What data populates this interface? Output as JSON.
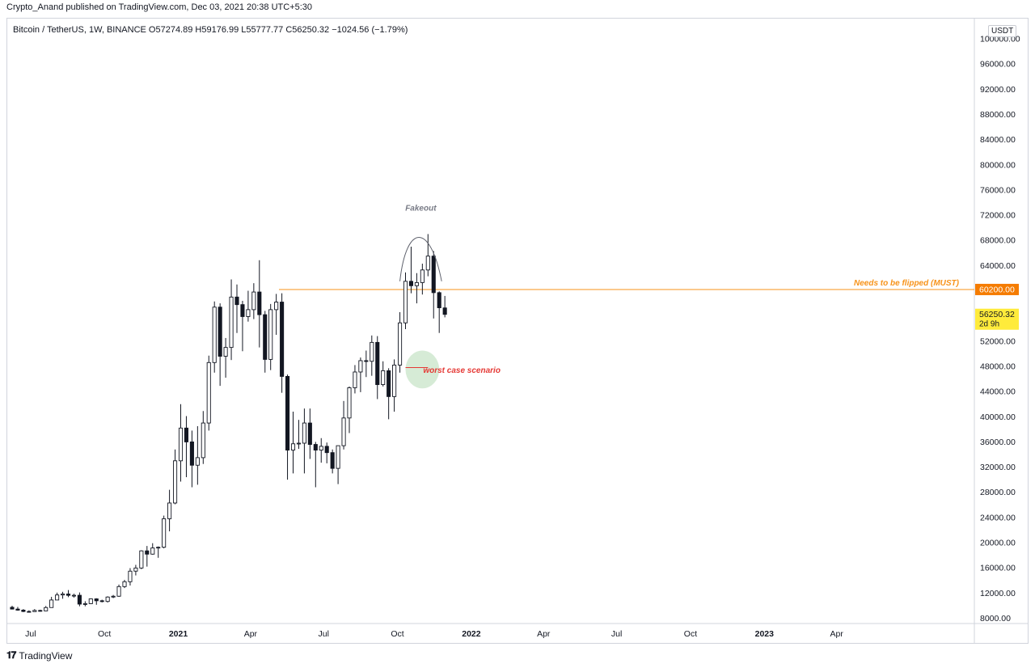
{
  "publish_line": "Crypto_Anand published on TradingView.com, Dec 03, 2021 20:38 UTC+5:30",
  "legend": "Bitcoin / TetherUS, 1W, BINANCE  O57274.89  H59176.99  L55777.77  C56250.32  −1024.56 (−1.79%)",
  "currency": "USDT",
  "footer": {
    "logo_icon": "tradingview-logo-icon",
    "brand": "TradingView"
  },
  "colors": {
    "resistance_line": "#f7931a",
    "resistance_label_bg": "#f57c00",
    "last_price_bg": "#ffeb3b",
    "worst_case_text": "#e53935",
    "worst_case_ellipse": "#cfe8cf",
    "fakeout_text": "#787b86",
    "candle_up_fill": "#ffffff",
    "candle_down_fill": "#131722",
    "candle_border": "#131722"
  },
  "chart_data": {
    "type": "candlestick",
    "ylim": [
      7000,
      103000
    ],
    "y_ticks": [
      8000,
      12000,
      16000,
      20000,
      24000,
      28000,
      32000,
      36000,
      40000,
      44000,
      48000,
      52000,
      56000,
      60000,
      64000,
      68000,
      72000,
      76000,
      80000,
      84000,
      88000,
      92000,
      96000,
      100000
    ],
    "y_tick_labels": [
      "8000.00",
      "12000.00",
      "16000.00",
      "20000.00",
      "24000.00",
      "28000.00",
      "32000.00",
      "36000.00",
      "40000.00",
      "44000.00",
      "48000.00",
      "52000.00",
      "56000.00",
      "60000.00",
      "64000.00",
      "68000.00",
      "72000.00",
      "76000.00",
      "80000.00",
      "84000.00",
      "88000.00",
      "92000.00",
      "96000.00",
      "100000.00"
    ],
    "x_start_date": "2020-06-08",
    "x_end_date": "2023-06-05",
    "x_ticks": [
      {
        "label": "Jul",
        "date": "2020-07-01"
      },
      {
        "label": "Oct",
        "date": "2020-10-01"
      },
      {
        "label": "2021",
        "date": "2021-01-01"
      },
      {
        "label": "Apr",
        "date": "2021-04-01"
      },
      {
        "label": "Jul",
        "date": "2021-07-01"
      },
      {
        "label": "Oct",
        "date": "2021-10-01"
      },
      {
        "label": "2022",
        "date": "2022-01-01"
      },
      {
        "label": "Apr",
        "date": "2022-04-01"
      },
      {
        "label": "Jul",
        "date": "2022-07-01"
      },
      {
        "label": "Oct",
        "date": "2022-10-01"
      },
      {
        "label": "2023",
        "date": "2023-01-01"
      },
      {
        "label": "Apr",
        "date": "2023-04-01"
      }
    ],
    "candles": [
      {
        "date": "2020-06-08",
        "o": 9740,
        "h": 9990,
        "l": 9400,
        "c": 9460
      },
      {
        "date": "2020-06-15",
        "o": 9460,
        "h": 9800,
        "l": 9200,
        "c": 9290
      },
      {
        "date": "2020-06-22",
        "o": 9290,
        "h": 9460,
        "l": 8980,
        "c": 9080
      },
      {
        "date": "2020-06-29",
        "o": 9080,
        "h": 9260,
        "l": 8930,
        "c": 9060
      },
      {
        "date": "2020-07-06",
        "o": 9060,
        "h": 9450,
        "l": 9050,
        "c": 9240
      },
      {
        "date": "2020-07-13",
        "o": 9240,
        "h": 9360,
        "l": 9050,
        "c": 9170
      },
      {
        "date": "2020-07-20",
        "o": 9170,
        "h": 9950,
        "l": 9130,
        "c": 9700
      },
      {
        "date": "2020-07-27",
        "o": 9700,
        "h": 11400,
        "l": 9700,
        "c": 10900
      },
      {
        "date": "2020-08-03",
        "o": 10900,
        "h": 12070,
        "l": 10900,
        "c": 11700
      },
      {
        "date": "2020-08-10",
        "o": 11700,
        "h": 12200,
        "l": 11100,
        "c": 11850
      },
      {
        "date": "2020-08-17",
        "o": 11850,
        "h": 12470,
        "l": 11350,
        "c": 11640
      },
      {
        "date": "2020-08-24",
        "o": 11640,
        "h": 11900,
        "l": 11280,
        "c": 11650
      },
      {
        "date": "2020-08-31",
        "o": 11650,
        "h": 12100,
        "l": 9900,
        "c": 10250
      },
      {
        "date": "2020-09-07",
        "o": 10250,
        "h": 10700,
        "l": 9900,
        "c": 10320
      },
      {
        "date": "2020-09-14",
        "o": 10320,
        "h": 11150,
        "l": 10250,
        "c": 11080
      },
      {
        "date": "2020-09-21",
        "o": 11080,
        "h": 11180,
        "l": 10140,
        "c": 10780
      },
      {
        "date": "2020-09-28",
        "o": 10780,
        "h": 10950,
        "l": 10520,
        "c": 10670
      },
      {
        "date": "2020-10-05",
        "o": 10670,
        "h": 11490,
        "l": 10500,
        "c": 11370
      },
      {
        "date": "2020-10-12",
        "o": 11370,
        "h": 11700,
        "l": 11200,
        "c": 11500
      },
      {
        "date": "2020-10-19",
        "o": 11500,
        "h": 13350,
        "l": 11400,
        "c": 13030
      },
      {
        "date": "2020-10-26",
        "o": 13030,
        "h": 14100,
        "l": 12800,
        "c": 13800
      },
      {
        "date": "2020-11-02",
        "o": 13800,
        "h": 15960,
        "l": 13200,
        "c": 15480
      },
      {
        "date": "2020-11-09",
        "o": 15480,
        "h": 16480,
        "l": 14800,
        "c": 15980
      },
      {
        "date": "2020-11-16",
        "o": 15980,
        "h": 18800,
        "l": 15800,
        "c": 18700
      },
      {
        "date": "2020-11-23",
        "o": 18700,
        "h": 19480,
        "l": 16200,
        "c": 18180
      },
      {
        "date": "2020-11-30",
        "o": 18180,
        "h": 19920,
        "l": 18100,
        "c": 19160
      },
      {
        "date": "2020-12-07",
        "o": 19160,
        "h": 19400,
        "l": 17600,
        "c": 19280
      },
      {
        "date": "2020-12-14",
        "o": 19280,
        "h": 24300,
        "l": 19100,
        "c": 23800
      },
      {
        "date": "2020-12-21",
        "o": 23800,
        "h": 28400,
        "l": 21800,
        "c": 26300
      },
      {
        "date": "2020-12-28",
        "o": 26300,
        "h": 34800,
        "l": 26100,
        "c": 33000
      },
      {
        "date": "2021-01-04",
        "o": 33000,
        "h": 42000,
        "l": 29700,
        "c": 38200
      },
      {
        "date": "2021-01-11",
        "o": 38200,
        "h": 40100,
        "l": 30400,
        "c": 36000
      },
      {
        "date": "2021-01-18",
        "o": 36000,
        "h": 37800,
        "l": 28800,
        "c": 32300
      },
      {
        "date": "2021-01-25",
        "o": 32300,
        "h": 38500,
        "l": 29200,
        "c": 33500
      },
      {
        "date": "2021-02-01",
        "o": 33500,
        "h": 40900,
        "l": 32500,
        "c": 39000
      },
      {
        "date": "2021-02-08",
        "o": 39000,
        "h": 49700,
        "l": 37800,
        "c": 48600
      },
      {
        "date": "2021-02-15",
        "o": 48600,
        "h": 58300,
        "l": 47000,
        "c": 57400
      },
      {
        "date": "2021-02-22",
        "o": 57400,
        "h": 58000,
        "l": 44900,
        "c": 49600
      },
      {
        "date": "2021-03-01",
        "o": 49600,
        "h": 52500,
        "l": 46200,
        "c": 51000
      },
      {
        "date": "2021-03-08",
        "o": 51000,
        "h": 61800,
        "l": 49000,
        "c": 59000
      },
      {
        "date": "2021-03-15",
        "o": 59000,
        "h": 61000,
        "l": 53300,
        "c": 57800
      },
      {
        "date": "2021-03-22",
        "o": 57800,
        "h": 58400,
        "l": 50400,
        "c": 55900
      },
      {
        "date": "2021-03-29",
        "o": 55900,
        "h": 60000,
        "l": 55100,
        "c": 57000
      },
      {
        "date": "2021-04-05",
        "o": 57000,
        "h": 61200,
        "l": 55500,
        "c": 59800
      },
      {
        "date": "2021-04-12",
        "o": 59800,
        "h": 64850,
        "l": 51000,
        "c": 56200
      },
      {
        "date": "2021-04-19",
        "o": 56200,
        "h": 56800,
        "l": 47000,
        "c": 49100
      },
      {
        "date": "2021-04-26",
        "o": 49100,
        "h": 57900,
        "l": 47400,
        "c": 57000
      },
      {
        "date": "2021-05-03",
        "o": 57000,
        "h": 59500,
        "l": 53000,
        "c": 58200
      },
      {
        "date": "2021-05-10",
        "o": 58200,
        "h": 59600,
        "l": 43800,
        "c": 46400
      },
      {
        "date": "2021-05-17",
        "o": 46400,
        "h": 46700,
        "l": 30000,
        "c": 34700
      },
      {
        "date": "2021-05-24",
        "o": 34700,
        "h": 40800,
        "l": 31000,
        "c": 35700
      },
      {
        "date": "2021-05-31",
        "o": 35700,
        "h": 39500,
        "l": 34900,
        "c": 35800
      },
      {
        "date": "2021-06-07",
        "o": 35800,
        "h": 41300,
        "l": 31000,
        "c": 39000
      },
      {
        "date": "2021-06-14",
        "o": 39000,
        "h": 41300,
        "l": 33300,
        "c": 35600
      },
      {
        "date": "2021-06-21",
        "o": 35600,
        "h": 36000,
        "l": 28800,
        "c": 34700
      },
      {
        "date": "2021-06-28",
        "o": 34700,
        "h": 36600,
        "l": 32700,
        "c": 35300
      },
      {
        "date": "2021-07-05",
        "o": 35300,
        "h": 35900,
        "l": 32600,
        "c": 34300
      },
      {
        "date": "2021-07-12",
        "o": 34300,
        "h": 34800,
        "l": 31000,
        "c": 31800
      },
      {
        "date": "2021-07-19",
        "o": 31800,
        "h": 35400,
        "l": 29300,
        "c": 35400
      },
      {
        "date": "2021-07-26",
        "o": 35400,
        "h": 42500,
        "l": 34800,
        "c": 39800
      },
      {
        "date": "2021-08-02",
        "o": 39800,
        "h": 44800,
        "l": 37400,
        "c": 44600
      },
      {
        "date": "2021-08-09",
        "o": 44600,
        "h": 48200,
        "l": 43700,
        "c": 47100
      },
      {
        "date": "2021-08-16",
        "o": 47100,
        "h": 49400,
        "l": 43900,
        "c": 48900
      },
      {
        "date": "2021-08-23",
        "o": 48900,
        "h": 50500,
        "l": 46300,
        "c": 48800
      },
      {
        "date": "2021-08-30",
        "o": 48800,
        "h": 52900,
        "l": 46500,
        "c": 51800
      },
      {
        "date": "2021-09-06",
        "o": 51800,
        "h": 52800,
        "l": 42800,
        "c": 45100
      },
      {
        "date": "2021-09-13",
        "o": 45100,
        "h": 48800,
        "l": 44800,
        "c": 47300
      },
      {
        "date": "2021-09-20",
        "o": 47300,
        "h": 47700,
        "l": 39600,
        "c": 43200
      },
      {
        "date": "2021-09-27",
        "o": 43200,
        "h": 49100,
        "l": 40800,
        "c": 48200
      },
      {
        "date": "2021-10-04",
        "o": 48200,
        "h": 56600,
        "l": 47000,
        "c": 54900
      },
      {
        "date": "2021-10-11",
        "o": 54900,
        "h": 62900,
        "l": 53900,
        "c": 61500
      },
      {
        "date": "2021-10-18",
        "o": 61500,
        "h": 67000,
        "l": 59600,
        "c": 60800
      },
      {
        "date": "2021-10-25",
        "o": 60800,
        "h": 62800,
        "l": 58000,
        "c": 61300
      },
      {
        "date": "2021-11-01",
        "o": 61300,
        "h": 64300,
        "l": 59400,
        "c": 63300
      },
      {
        "date": "2021-11-08",
        "o": 63300,
        "h": 69000,
        "l": 62300,
        "c": 65500
      },
      {
        "date": "2021-11-15",
        "o": 65500,
        "h": 66300,
        "l": 55600,
        "c": 59700
      },
      {
        "date": "2021-11-22",
        "o": 59700,
        "h": 59900,
        "l": 53300,
        "c": 57300
      },
      {
        "date": "2021-11-29",
        "o": 57274.89,
        "h": 59176.99,
        "l": 55777.77,
        "c": 56250.32
      }
    ],
    "resistance": {
      "value": 60200,
      "label": "Needs to be flipped (MUST)",
      "price_label": "60200.00"
    },
    "last_price": {
      "value": 56250.32,
      "label": "56250.32",
      "countdown": "2d 9h"
    },
    "annotations": [
      {
        "name": "fakeout",
        "text": "Fakeout",
        "date": "2021-10-30",
        "value": 72700
      },
      {
        "name": "worst-case",
        "text": "worst case scenario",
        "date": "2021-11-02",
        "value": 47500
      }
    ],
    "fakeout_arc": {
      "start_date": "2021-10-04",
      "end_date": "2021-11-25",
      "base_value": 61500,
      "peak_value": 68500
    },
    "worst_case_zone": {
      "start_date": "2021-10-11",
      "end_date": "2021-11-22",
      "low": 44500,
      "high": 50500
    },
    "worst_case_line": {
      "start_date": "2021-10-11",
      "end_date": "2021-11-08",
      "value": 47800
    }
  }
}
